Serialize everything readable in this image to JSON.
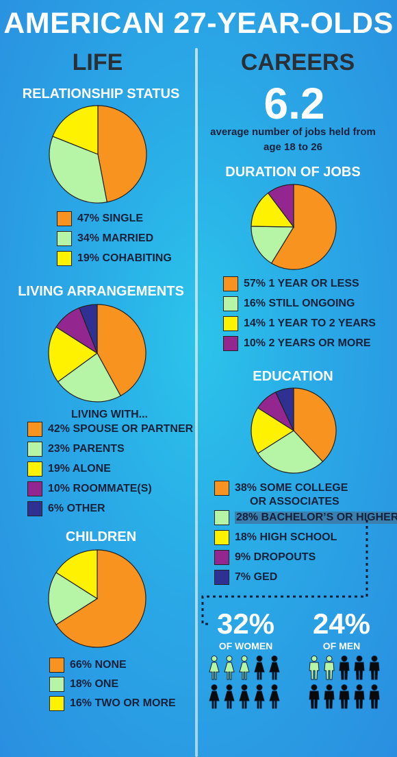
{
  "title": "AMERICAN 27-YEAR-OLDS",
  "life": {
    "heading": "LIFE",
    "relationship": {
      "heading": "RELATIONSHIP STATUS",
      "items": [
        {
          "label": "47% SINGLE",
          "value": 47,
          "color": "#f7931e"
        },
        {
          "label": "34% MARRIED",
          "value": 34,
          "color": "#b7f5a6"
        },
        {
          "label": "19% COHABITING",
          "value": 19,
          "color": "#fff200"
        }
      ]
    },
    "living": {
      "heading": "LIVING ARRANGEMENTS",
      "subheading": "LIVING WITH...",
      "items": [
        {
          "label": "42% SPOUSE OR PARTNER",
          "value": 42,
          "color": "#f7931e"
        },
        {
          "label": "23% PARENTS",
          "value": 23,
          "color": "#b7f5a6"
        },
        {
          "label": "19% ALONE",
          "value": 19,
          "color": "#fff200"
        },
        {
          "label": "10% ROOMMATE(S)",
          "value": 10,
          "color": "#93278f"
        },
        {
          "label": "6%   OTHER",
          "value": 6,
          "color": "#2e3192"
        }
      ]
    },
    "children": {
      "heading": "CHILDREN",
      "items": [
        {
          "label": "66% NONE",
          "value": 66,
          "color": "#f7931e"
        },
        {
          "label": "18% ONE",
          "value": 18,
          "color": "#b7f5a6"
        },
        {
          "label": "16% TWO OR MORE",
          "value": 16,
          "color": "#fff200"
        }
      ]
    }
  },
  "careers": {
    "heading": "CAREERS",
    "jobs_number": "6.2",
    "jobs_desc_1": "average number of jobs held from",
    "jobs_desc_2": "age 18 to 26",
    "duration": {
      "heading": "DURATION OF JOBS",
      "items": [
        {
          "label": "57% 1 YEAR OR LESS",
          "value": 57,
          "color": "#f7931e"
        },
        {
          "label": "16% STILL ONGOING",
          "value": 16,
          "color": "#b7f5a6"
        },
        {
          "label": "14% 1 YEAR TO 2 YEARS",
          "value": 14,
          "color": "#fff200"
        },
        {
          "label": "10% 2 YEARS OR MORE",
          "value": 10,
          "color": "#93278f"
        }
      ]
    },
    "education": {
      "heading": "EDUCATION",
      "items": [
        {
          "label": "38% SOME COLLEGE",
          "label2": "OR ASSOCIATES",
          "value": 38,
          "color": "#f7931e"
        },
        {
          "label": "28% BACHELOR’S OR HIGHER",
          "value": 28,
          "color": "#b7f5a6"
        },
        {
          "label": "18% HIGH SCHOOL",
          "value": 18,
          "color": "#fff200"
        },
        {
          "label": "9%  DROPOUTS",
          "value": 9,
          "color": "#93278f"
        },
        {
          "label": "7%   GED",
          "value": 7,
          "color": "#2e3192"
        }
      ]
    },
    "women_pct": "32%",
    "women_label": "OF WOMEN",
    "men_pct": "24%",
    "men_label": "OF MEN",
    "women_highlighted": 3,
    "men_highlighted": 2,
    "figure_count": 10
  },
  "chart_data": [
    {
      "type": "pie",
      "title": "RELATIONSHIP STATUS",
      "categories": [
        "SINGLE",
        "MARRIED",
        "COHABITING"
      ],
      "values": [
        47,
        34,
        19
      ]
    },
    {
      "type": "pie",
      "title": "LIVING ARRANGEMENTS",
      "categories": [
        "SPOUSE OR PARTNER",
        "PARENTS",
        "ALONE",
        "ROOMMATE(S)",
        "OTHER"
      ],
      "values": [
        42,
        23,
        19,
        10,
        6
      ]
    },
    {
      "type": "pie",
      "title": "CHILDREN",
      "categories": [
        "NONE",
        "ONE",
        "TWO OR MORE"
      ],
      "values": [
        66,
        18,
        16
      ]
    },
    {
      "type": "pie",
      "title": "DURATION OF JOBS",
      "categories": [
        "1 YEAR OR LESS",
        "STILL ONGOING",
        "1 YEAR TO 2 YEARS",
        "2 YEARS OR MORE"
      ],
      "values": [
        57,
        16,
        14,
        10
      ]
    },
    {
      "type": "pie",
      "title": "EDUCATION",
      "categories": [
        "SOME COLLEGE OR ASSOCIATES",
        "BACHELOR’S OR HIGHER",
        "HIGH SCHOOL",
        "DROPOUTS",
        "GED"
      ],
      "values": [
        38,
        28,
        18,
        9,
        7
      ]
    }
  ]
}
